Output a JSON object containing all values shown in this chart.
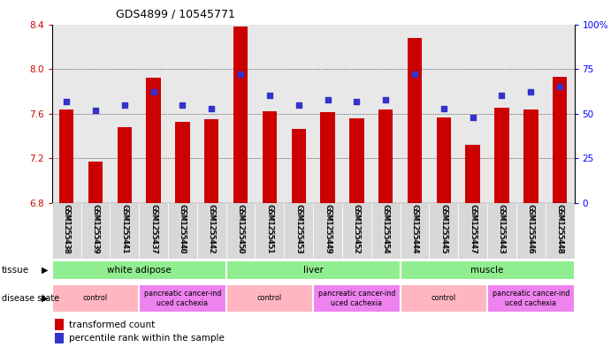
{
  "title": "GDS4899 / 10545771",
  "samples": [
    "GSM1255438",
    "GSM1255439",
    "GSM1255441",
    "GSM1255437",
    "GSM1255440",
    "GSM1255442",
    "GSM1255450",
    "GSM1255451",
    "GSM1255453",
    "GSM1255449",
    "GSM1255452",
    "GSM1255454",
    "GSM1255444",
    "GSM1255445",
    "GSM1255447",
    "GSM1255443",
    "GSM1255446",
    "GSM1255448"
  ],
  "red_values": [
    7.64,
    7.17,
    7.48,
    7.92,
    7.53,
    7.55,
    8.38,
    7.62,
    7.46,
    7.61,
    7.56,
    7.64,
    8.28,
    7.57,
    7.32,
    7.65,
    7.64,
    7.93
  ],
  "blue_values": [
    57,
    52,
    55,
    62,
    55,
    53,
    72,
    60,
    55,
    58,
    57,
    58,
    72,
    53,
    48,
    60,
    62,
    65
  ],
  "ylim_left": [
    6.8,
    8.4
  ],
  "ylim_right": [
    0,
    100
  ],
  "yticks_left": [
    6.8,
    7.2,
    7.6,
    8.0,
    8.4
  ],
  "yticks_right": [
    0,
    25,
    50,
    75,
    100
  ],
  "ytick_right_labels": [
    "0",
    "25",
    "50",
    "75",
    "100%"
  ],
  "tissue_groups": [
    {
      "label": "white adipose",
      "start": 0,
      "end": 6,
      "color": "#90EE90"
    },
    {
      "label": "liver",
      "start": 6,
      "end": 12,
      "color": "#90EE90"
    },
    {
      "label": "muscle",
      "start": 12,
      "end": 18,
      "color": "#90EE90"
    }
  ],
  "disease_groups": [
    {
      "label": "control",
      "start": 0,
      "end": 3,
      "color": "#FFB6C1"
    },
    {
      "label": "pancreatic cancer-ind\nuced cachexia",
      "start": 3,
      "end": 6,
      "color": "#EE82EE"
    },
    {
      "label": "control",
      "start": 6,
      "end": 9,
      "color": "#FFB6C1"
    },
    {
      "label": "pancreatic cancer-ind\nuced cachexia",
      "start": 9,
      "end": 12,
      "color": "#EE82EE"
    },
    {
      "label": "control",
      "start": 12,
      "end": 15,
      "color": "#FFB6C1"
    },
    {
      "label": "pancreatic cancer-ind\nuced cachexia",
      "start": 15,
      "end": 18,
      "color": "#EE82EE"
    }
  ],
  "bar_color": "#CC0000",
  "dot_color": "#3333CC",
  "background_color": "#FFFFFF",
  "plot_bg_color": "#E8E8E8",
  "grid_color": "#000000",
  "bar_width": 0.5
}
